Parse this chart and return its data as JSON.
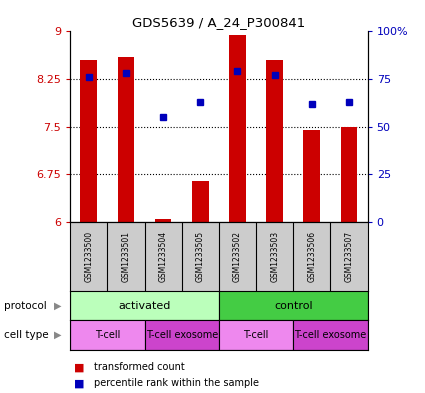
{
  "title": "GDS5639 / A_24_P300841",
  "samples": [
    "GSM1233500",
    "GSM1233501",
    "GSM1233504",
    "GSM1233505",
    "GSM1233502",
    "GSM1233503",
    "GSM1233506",
    "GSM1233507"
  ],
  "transformed_counts": [
    8.55,
    8.6,
    6.05,
    6.65,
    8.95,
    8.55,
    7.45,
    7.5
  ],
  "percentile_ranks": [
    76,
    78,
    55,
    63,
    79,
    77,
    62,
    63
  ],
  "ylim_left": [
    6,
    9
  ],
  "ylim_right": [
    0,
    100
  ],
  "yticks_left": [
    6,
    6.75,
    7.5,
    8.25,
    9
  ],
  "yticks_right": [
    0,
    25,
    50,
    75,
    100
  ],
  "ytick_labels_left": [
    "6",
    "6.75",
    "7.5",
    "8.25",
    "9"
  ],
  "ytick_labels_right": [
    "0",
    "25",
    "50",
    "75",
    "100%"
  ],
  "bar_color": "#cc0000",
  "dot_color": "#0000bb",
  "bar_bottom": 6,
  "bar_width": 0.45,
  "plot_bg": "#ffffff",
  "protocol_groups": [
    {
      "label": "activated",
      "start": 0,
      "end": 4,
      "color": "#bbffbb"
    },
    {
      "label": "control",
      "start": 4,
      "end": 8,
      "color": "#44cc44"
    }
  ],
  "cell_type_groups": [
    {
      "label": "T-cell",
      "start": 0,
      "end": 2,
      "color": "#ee88ee"
    },
    {
      "label": "T-cell exosome",
      "start": 2,
      "end": 4,
      "color": "#cc44cc"
    },
    {
      "label": "T-cell",
      "start": 4,
      "end": 6,
      "color": "#ee88ee"
    },
    {
      "label": "T-cell exosome",
      "start": 6,
      "end": 8,
      "color": "#cc44cc"
    }
  ],
  "sample_bg": "#cccccc",
  "legend_items": [
    {
      "label": "transformed count",
      "color": "#cc0000"
    },
    {
      "label": "percentile rank within the sample",
      "color": "#0000bb"
    }
  ],
  "tick_color_left": "#cc0000",
  "tick_color_right": "#0000bb",
  "grid_linestyle": "dotted",
  "grid_linewidth": 0.8,
  "grid_color": "#000000"
}
